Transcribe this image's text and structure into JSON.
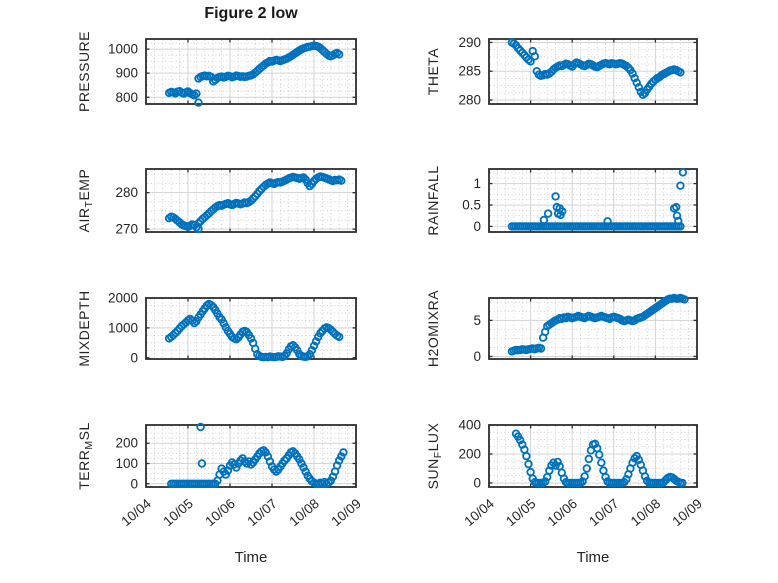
{
  "figure": {
    "title": "Figure 2 low",
    "xlabel": "Time",
    "x_axis": {
      "xlim": [
        0,
        5
      ],
      "ticks": [
        0,
        1,
        2,
        3,
        4,
        5
      ],
      "labels": [
        "10/04",
        "10/05",
        "10/06",
        "10/07",
        "10/08",
        "10/09"
      ]
    },
    "colors": {
      "marker": "#0072BD",
      "axis": "#2e2e2e",
      "text": "#262626",
      "grid_major": "#d4d4d4",
      "grid_minor": "#c9c9c9",
      "background": "#ffffff"
    }
  },
  "chart_data": [
    {
      "key": "pressure",
      "type": "scatter",
      "ylabel": "PRESSURE",
      "ylabel_parts": [
        {
          "text": "PRESSURE",
          "sub": false
        }
      ],
      "ylim": [
        772,
        1042
      ],
      "yticks": [
        {
          "v": 800,
          "label": "800"
        },
        {
          "v": 900,
          "label": "900"
        },
        {
          "v": 1000,
          "label": "1000"
        }
      ],
      "x_unit": "days since 10/04",
      "x0": 0.55,
      "dx": 0.05,
      "y": [
        818,
        822,
        820,
        816,
        823,
        825,
        819,
        815,
        820,
        824,
        817,
        812,
        808,
        815,
        878,
        884,
        888,
        890,
        887,
        889,
        884,
        866,
        872,
        880,
        884,
        886,
        882,
        885,
        889,
        887,
        883,
        886,
        890,
        888,
        885,
        887,
        884,
        886,
        889,
        891,
        895,
        902,
        910,
        918,
        925,
        932,
        940,
        945,
        950,
        948,
        952,
        955,
        953,
        950,
        954,
        957,
        960,
        965,
        970,
        976,
        982,
        988,
        994,
        999,
        1003,
        1006,
        1009,
        1010,
        1012,
        1014,
        1013,
        1010,
        1004,
        996,
        988,
        980,
        973,
        970,
        974,
        980,
        984,
        978
      ],
      "extra_points": [
        [
          1.25,
          778
        ]
      ]
    },
    {
      "key": "theta",
      "type": "scatter",
      "ylabel": "THETA",
      "ylabel_parts": [
        {
          "text": "THETA",
          "sub": false
        }
      ],
      "ylim": [
        279.3,
        290.6
      ],
      "yticks": [
        {
          "v": 280,
          "label": "280"
        },
        {
          "v": 285,
          "label": "285"
        },
        {
          "v": 290,
          "label": "290"
        }
      ],
      "x_unit": "days since 10/04",
      "x0": 0.55,
      "dx": 0.05,
      "y": [
        290.0,
        289.8,
        289.5,
        289.0,
        288.6,
        288.2,
        287.8,
        287.4,
        287.0,
        286.7,
        288.5,
        287.6,
        285.0,
        284.4,
        284.2,
        284.3,
        284.5,
        284.4,
        284.6,
        284.9,
        285.3,
        285.6,
        285.8,
        286.0,
        285.9,
        286.1,
        286.3,
        286.2,
        286.0,
        285.8,
        286.2,
        286.5,
        286.4,
        286.2,
        286.0,
        285.9,
        286.1,
        286.3,
        286.2,
        286.0,
        285.8,
        285.7,
        285.9,
        286.1,
        286.3,
        286.4,
        286.3,
        286.2,
        286.4,
        286.3,
        286.2,
        286.3,
        286.4,
        286.3,
        286.1,
        285.9,
        285.6,
        285.2,
        284.6,
        283.8,
        283.0,
        282.2,
        281.4,
        280.9,
        281.2,
        281.8,
        282.3,
        282.8,
        283.2,
        283.5,
        283.8,
        284.0,
        284.3,
        284.5,
        284.7,
        284.9,
        285.1,
        285.2,
        285.3,
        285.2,
        285.0,
        284.8
      ],
      "extra_points": []
    },
    {
      "key": "air_temp",
      "type": "scatter",
      "ylabel": "AIR_TEMP",
      "ylabel_parts": [
        {
          "text": "AIR",
          "sub": false
        },
        {
          "text": "T",
          "sub": true
        },
        {
          "text": "EMP",
          "sub": false
        }
      ],
      "ylim": [
        269.2,
        286.5
      ],
      "yticks": [
        {
          "v": 270,
          "label": "270"
        },
        {
          "v": 280,
          "label": "280"
        }
      ],
      "x_unit": "days since 10/04",
      "x0": 0.55,
      "dx": 0.05,
      "y": [
        273.0,
        273.4,
        273.2,
        272.8,
        272.3,
        271.8,
        271.3,
        271.0,
        270.8,
        270.6,
        270.9,
        271.3,
        271.0,
        270.5,
        271.6,
        272.2,
        272.8,
        273.3,
        273.8,
        274.3,
        274.9,
        275.4,
        275.9,
        276.3,
        276.6,
        276.4,
        276.7,
        276.9,
        277.1,
        276.8,
        276.6,
        276.9,
        277.2,
        277.0,
        276.8,
        277.0,
        277.3,
        277.1,
        277.4,
        277.8,
        278.4,
        279.0,
        279.7,
        280.4,
        281.0,
        281.6,
        282.1,
        282.5,
        282.8,
        282.6,
        282.4,
        282.7,
        282.9,
        282.8,
        283.0,
        283.3,
        283.6,
        283.9,
        284.1,
        284.3,
        284.2,
        284.0,
        283.8,
        284.0,
        284.2,
        283.6,
        282.6,
        281.8,
        282.4,
        283.2,
        283.8,
        284.2,
        284.4,
        284.3,
        284.1,
        283.9,
        283.7,
        283.4,
        283.2,
        283.5,
        283.4,
        283.6,
        283.3
      ],
      "extra_points": [
        [
          1.25,
          270.0
        ]
      ]
    },
    {
      "key": "rainfall",
      "type": "scatter",
      "ylabel": "RAINFALL",
      "ylabel_parts": [
        {
          "text": "RAINFALL",
          "sub": false
        }
      ],
      "ylim": [
        -0.13,
        1.34
      ],
      "yticks": [
        {
          "v": 0,
          "label": "0"
        },
        {
          "v": 0.5,
          "label": "0.5"
        },
        {
          "v": 1,
          "label": "1"
        }
      ],
      "x_unit": "days since 10/04",
      "x0": 0.55,
      "dx": 0.05,
      "y": [
        0,
        0,
        0,
        0,
        0,
        0,
        0,
        0,
        0,
        0,
        0,
        0,
        0,
        0,
        0,
        0,
        0,
        0,
        0,
        0,
        0,
        0,
        0,
        0,
        0,
        0,
        0,
        0,
        0,
        0,
        0,
        0,
        0,
        0,
        0,
        0,
        0,
        0,
        0,
        0,
        0,
        0,
        0,
        0,
        0,
        0,
        0,
        0,
        0,
        0,
        0,
        0,
        0,
        0,
        0,
        0,
        0,
        0,
        0,
        0,
        0,
        0,
        0,
        0,
        0,
        0,
        0,
        0,
        0,
        0,
        0,
        0,
        0,
        0,
        0,
        0,
        0,
        0,
        0,
        0,
        0,
        0
      ],
      "extra_points": [
        [
          1.32,
          0.15
        ],
        [
          1.42,
          0.3
        ],
        [
          1.6,
          0.7
        ],
        [
          1.63,
          0.45
        ],
        [
          1.66,
          0.3
        ],
        [
          1.7,
          0.42
        ],
        [
          1.72,
          0.27
        ],
        [
          1.76,
          0.35
        ],
        [
          2.85,
          0.12
        ],
        [
          4.45,
          0.42
        ],
        [
          4.5,
          0.45
        ],
        [
          4.52,
          0.25
        ],
        [
          4.55,
          0.13
        ],
        [
          4.6,
          0.95
        ],
        [
          4.66,
          1.26
        ]
      ]
    },
    {
      "key": "mixdepth",
      "type": "scatter",
      "ylabel": "MIXDEPTH",
      "ylabel_parts": [
        {
          "text": "MIXDEPTH",
          "sub": false
        }
      ],
      "ylim": [
        -40,
        2000
      ],
      "yticks": [
        {
          "v": 0,
          "label": "0"
        },
        {
          "v": 1000,
          "label": "1000"
        },
        {
          "v": 2000,
          "label": "2000"
        }
      ],
      "x_unit": "days since 10/04",
      "x0": 0.55,
      "dx": 0.05,
      "y": [
        650,
        700,
        760,
        830,
        900,
        980,
        1060,
        1120,
        1180,
        1250,
        1300,
        1240,
        1160,
        1220,
        1350,
        1450,
        1560,
        1650,
        1750,
        1800,
        1760,
        1700,
        1600,
        1480,
        1360,
        1280,
        1150,
        1020,
        900,
        800,
        700,
        650,
        620,
        680,
        780,
        870,
        900,
        860,
        760,
        650,
        500,
        300,
        120,
        60,
        30,
        20,
        30,
        20,
        40,
        30,
        20,
        30,
        50,
        40,
        30,
        60,
        150,
        280,
        380,
        420,
        350,
        250,
        120,
        60,
        40,
        30,
        50,
        120,
        250,
        400,
        550,
        700,
        820,
        900,
        980,
        1020,
        990,
        940,
        870,
        800,
        740,
        700
      ],
      "extra_points": []
    },
    {
      "key": "h2omixra",
      "type": "scatter",
      "ylabel": "H2OMIXRA",
      "ylabel_parts": [
        {
          "text": "H2OMIXRA",
          "sub": false
        }
      ],
      "ylim": [
        -0.35,
        8.1
      ],
      "yticks": [
        {
          "v": 0,
          "label": "0"
        },
        {
          "v": 5,
          "label": "5"
        }
      ],
      "x_unit": "days since 10/04",
      "x0": 0.55,
      "dx": 0.05,
      "y": [
        0.7,
        0.8,
        0.9,
        0.85,
        0.9,
        1.0,
        0.95,
        0.9,
        1.0,
        1.05,
        1.1,
        1.0,
        1.1,
        1.2,
        1.1,
        2.6,
        3.4,
        4.2,
        4.4,
        4.6,
        4.8,
        5.0,
        5.1,
        5.3,
        5.2,
        5.4,
        5.3,
        5.5,
        5.4,
        5.3,
        5.4,
        5.5,
        5.6,
        5.5,
        5.4,
        5.3,
        5.5,
        5.6,
        5.5,
        5.4,
        5.3,
        5.4,
        5.5,
        5.6,
        5.5,
        5.4,
        5.3,
        5.2,
        5.4,
        5.5,
        5.4,
        5.3,
        5.2,
        5.0,
        4.9,
        5.0,
        5.1,
        5.0,
        4.9,
        5.0,
        5.2,
        5.3,
        5.4,
        5.5,
        5.7,
        5.9,
        6.1,
        6.3,
        6.5,
        6.7,
        6.9,
        7.1,
        7.3,
        7.5,
        7.7,
        7.9,
        8.0,
        8.0,
        8.1,
        8.0,
        8.0,
        8.1,
        8.0,
        7.9
      ],
      "extra_points": []
    },
    {
      "key": "terr_msl",
      "type": "scatter",
      "ylabel": "TERR_MSL",
      "ylabel_parts": [
        {
          "text": "TERR",
          "sub": false
        },
        {
          "text": "M",
          "sub": true
        },
        {
          "text": "SL",
          "sub": false
        }
      ],
      "ylim": [
        -16,
        290
      ],
      "yticks": [
        {
          "v": 0,
          "label": "0"
        },
        {
          "v": 100,
          "label": "100"
        },
        {
          "v": 200,
          "label": "200"
        }
      ],
      "x_unit": "days since 10/04",
      "x0": 0.6,
      "dx": 0.05,
      "y": [
        0,
        0,
        0,
        0,
        0,
        0,
        0,
        0,
        0,
        0,
        0,
        0,
        0,
        0,
        0,
        0,
        0,
        0,
        0,
        0,
        0,
        0,
        15,
        45,
        75,
        60,
        45,
        65,
        90,
        105,
        95,
        80,
        100,
        115,
        125,
        110,
        100,
        110,
        95,
        105,
        120,
        135,
        150,
        160,
        165,
        155,
        135,
        110,
        85,
        70,
        60,
        70,
        85,
        100,
        115,
        125,
        140,
        155,
        160,
        150,
        135,
        120,
        100,
        80,
        60,
        40,
        25,
        12,
        5,
        0,
        0,
        5,
        0,
        8,
        0,
        5,
        15,
        35,
        60,
        90,
        115,
        135,
        155
      ],
      "extra_points": [
        [
          1.3,
          280
        ],
        [
          1.33,
          100
        ]
      ]
    },
    {
      "key": "sun_flux",
      "type": "scatter",
      "ylabel": "SUN_FLUX",
      "ylabel_parts": [
        {
          "text": "SUN",
          "sub": false
        },
        {
          "text": "F",
          "sub": true
        },
        {
          "text": "LUX",
          "sub": false
        }
      ],
      "ylim": [
        -28,
        400
      ],
      "yticks": [
        {
          "v": 0,
          "label": "0"
        },
        {
          "v": 200,
          "label": "200"
        },
        {
          "v": 400,
          "label": "400"
        }
      ],
      "x_unit": "days since 10/04",
      "x0": 0.65,
      "dx": 0.05,
      "y": [
        340,
        320,
        295,
        265,
        230,
        185,
        130,
        75,
        30,
        5,
        0,
        0,
        0,
        0,
        10,
        40,
        85,
        120,
        140,
        120,
        145,
        115,
        70,
        30,
        5,
        0,
        0,
        0,
        0,
        0,
        0,
        0,
        10,
        45,
        100,
        165,
        225,
        265,
        270,
        240,
        195,
        140,
        85,
        40,
        10,
        0,
        0,
        0,
        0,
        0,
        0,
        0,
        5,
        25,
        60,
        100,
        140,
        170,
        185,
        160,
        125,
        85,
        45,
        15,
        0,
        0,
        0,
        0,
        0,
        0,
        0,
        5,
        20,
        35,
        42,
        38,
        28,
        15,
        8,
        0,
        0
      ],
      "extra_points": []
    }
  ]
}
